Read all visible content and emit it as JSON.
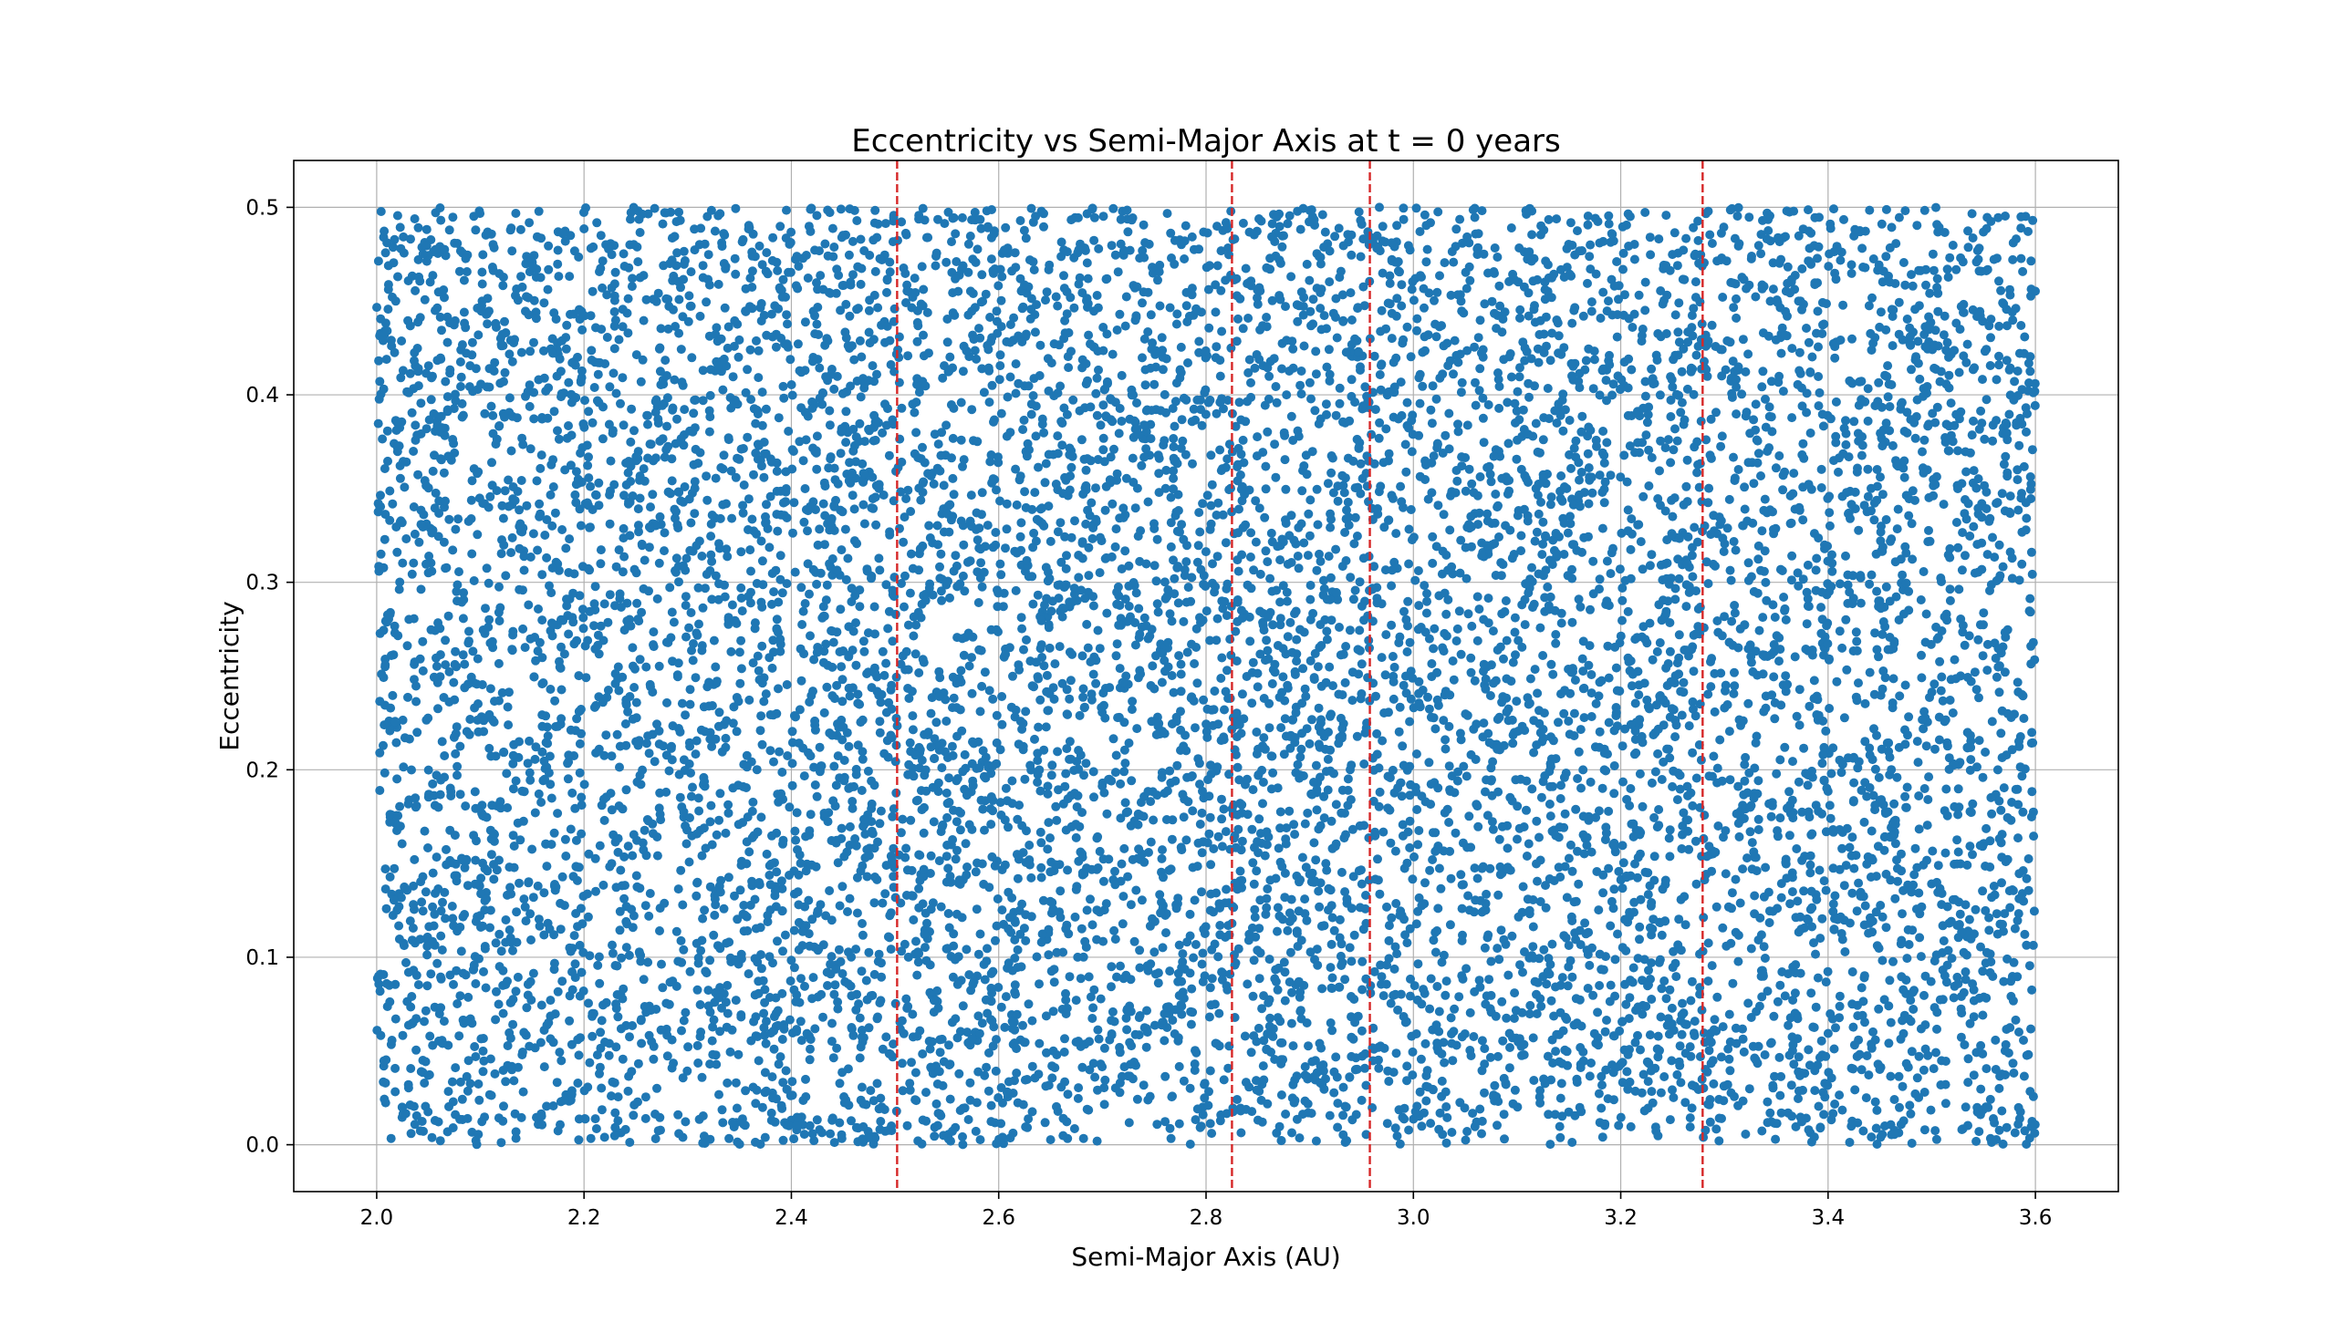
{
  "chart_data": {
    "type": "scatter",
    "title": "Eccentricity vs Semi-Major Axis at t = 0 years",
    "xlabel": "Semi-Major Axis (AU)",
    "ylabel": "Eccentricity",
    "xlim": [
      1.92,
      3.68
    ],
    "ylim": [
      -0.025,
      0.525
    ],
    "xticks": [
      2.0,
      2.2,
      2.4,
      2.6,
      2.8,
      3.0,
      3.2,
      3.4,
      3.6
    ],
    "xtick_labels": [
      "2.0",
      "2.2",
      "2.4",
      "2.6",
      "2.8",
      "3.0",
      "3.2",
      "3.4",
      "3.6"
    ],
    "yticks": [
      0.0,
      0.1,
      0.2,
      0.3,
      0.4,
      0.5
    ],
    "ytick_labels": [
      "0.0",
      "0.1",
      "0.2",
      "0.3",
      "0.4",
      "0.5"
    ],
    "grid": true,
    "legend": "none",
    "marker_color": "#1f77b4",
    "reference_line_color": "#d62728",
    "point_generation": {
      "count": 10000,
      "distribution": "uniform",
      "x_range": [
        2.0,
        3.6
      ],
      "y_range": [
        0.0,
        0.5
      ],
      "seed": 12345
    },
    "vertical_lines": [
      {
        "x": 2.502,
        "style": "dashed"
      },
      {
        "x": 2.825,
        "style": "dashed"
      },
      {
        "x": 2.958,
        "style": "dashed"
      },
      {
        "x": 3.279,
        "style": "dashed"
      }
    ]
  }
}
